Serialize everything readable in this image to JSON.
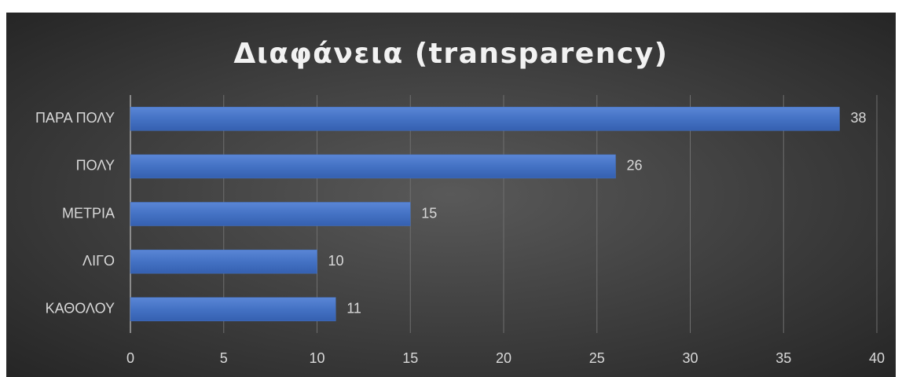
{
  "chart_data": {
    "type": "bar",
    "orientation": "horizontal",
    "title": "Διαφάνεια (transparency)",
    "categories": [
      "ΠΑΡΑ ΠΟΛΥ",
      "ΠΟΛΥ",
      "ΜΕΤΡΙΑ",
      "ΛΙΓΟ",
      "ΚΑΘΟΛΟΥ"
    ],
    "values": [
      38,
      26,
      15,
      10,
      11
    ],
    "color": "#4472c4",
    "xlim": [
      0,
      40
    ],
    "xticks": [
      0,
      5,
      10,
      15,
      20,
      25,
      30,
      35,
      40
    ],
    "grid": true,
    "data_labels": true
  }
}
